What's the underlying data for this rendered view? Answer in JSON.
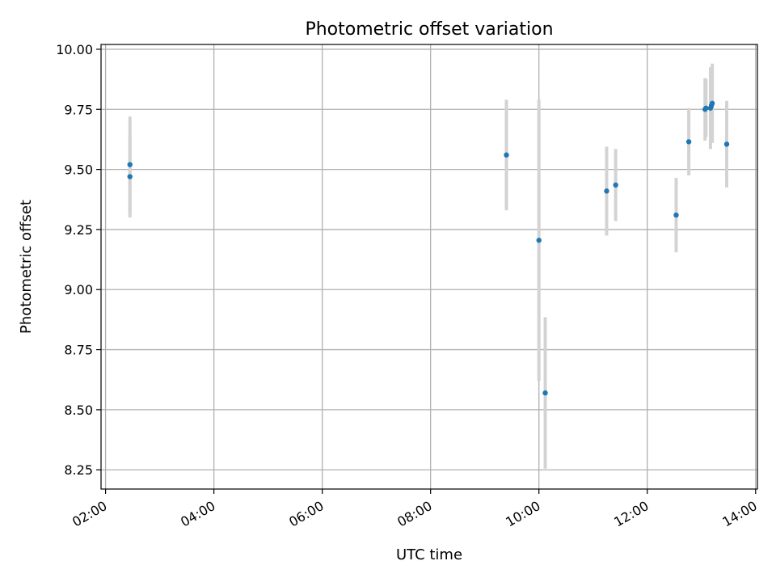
{
  "chart_data": {
    "type": "scatter",
    "title": "Photometric offset variation",
    "xlabel": "UTC time",
    "ylabel": "Photometric offset",
    "x_ticks": [
      "02:00",
      "04:00",
      "06:00",
      "08:00",
      "10:00",
      "12:00",
      "14:00"
    ],
    "y_ticks": [
      "8.25",
      "8.50",
      "8.75",
      "9.00",
      "9.25",
      "9.50",
      "9.75",
      "10.00"
    ],
    "xlim": [
      "01:55",
      "14:02"
    ],
    "ylim": [
      8.17,
      10.02
    ],
    "grid": true,
    "colors": {
      "point": "#1f77b4",
      "errorbar": "#d3d3d3",
      "grid": "#b0b0b0"
    },
    "points": [
      {
        "x": "02:27",
        "y": 9.52,
        "yerr": 0.2
      },
      {
        "x": "02:27",
        "y": 9.47,
        "yerr": 0.17
      },
      {
        "x": "09:24",
        "y": 9.56,
        "yerr": 0.23
      },
      {
        "x": "10:00",
        "y": 9.205,
        "yerr": 0.585
      },
      {
        "x": "10:07",
        "y": 8.57,
        "yerr": 0.315
      },
      {
        "x": "11:15",
        "y": 9.41,
        "yerr": 0.185
      },
      {
        "x": "11:25",
        "y": 9.435,
        "yerr": 0.15
      },
      {
        "x": "12:32",
        "y": 9.31,
        "yerr": 0.155
      },
      {
        "x": "12:46",
        "y": 9.615,
        "yerr": 0.14
      },
      {
        "x": "13:04",
        "y": 9.75,
        "yerr": 0.13
      },
      {
        "x": "13:05",
        "y": 9.755,
        "yerr": 0.12
      },
      {
        "x": "13:10",
        "y": 9.755,
        "yerr": 0.17
      },
      {
        "x": "13:11",
        "y": 9.765,
        "yerr": 0.15
      },
      {
        "x": "13:12",
        "y": 9.775,
        "yerr": 0.165
      },
      {
        "x": "13:28",
        "y": 9.605,
        "yerr": 0.18
      }
    ]
  }
}
